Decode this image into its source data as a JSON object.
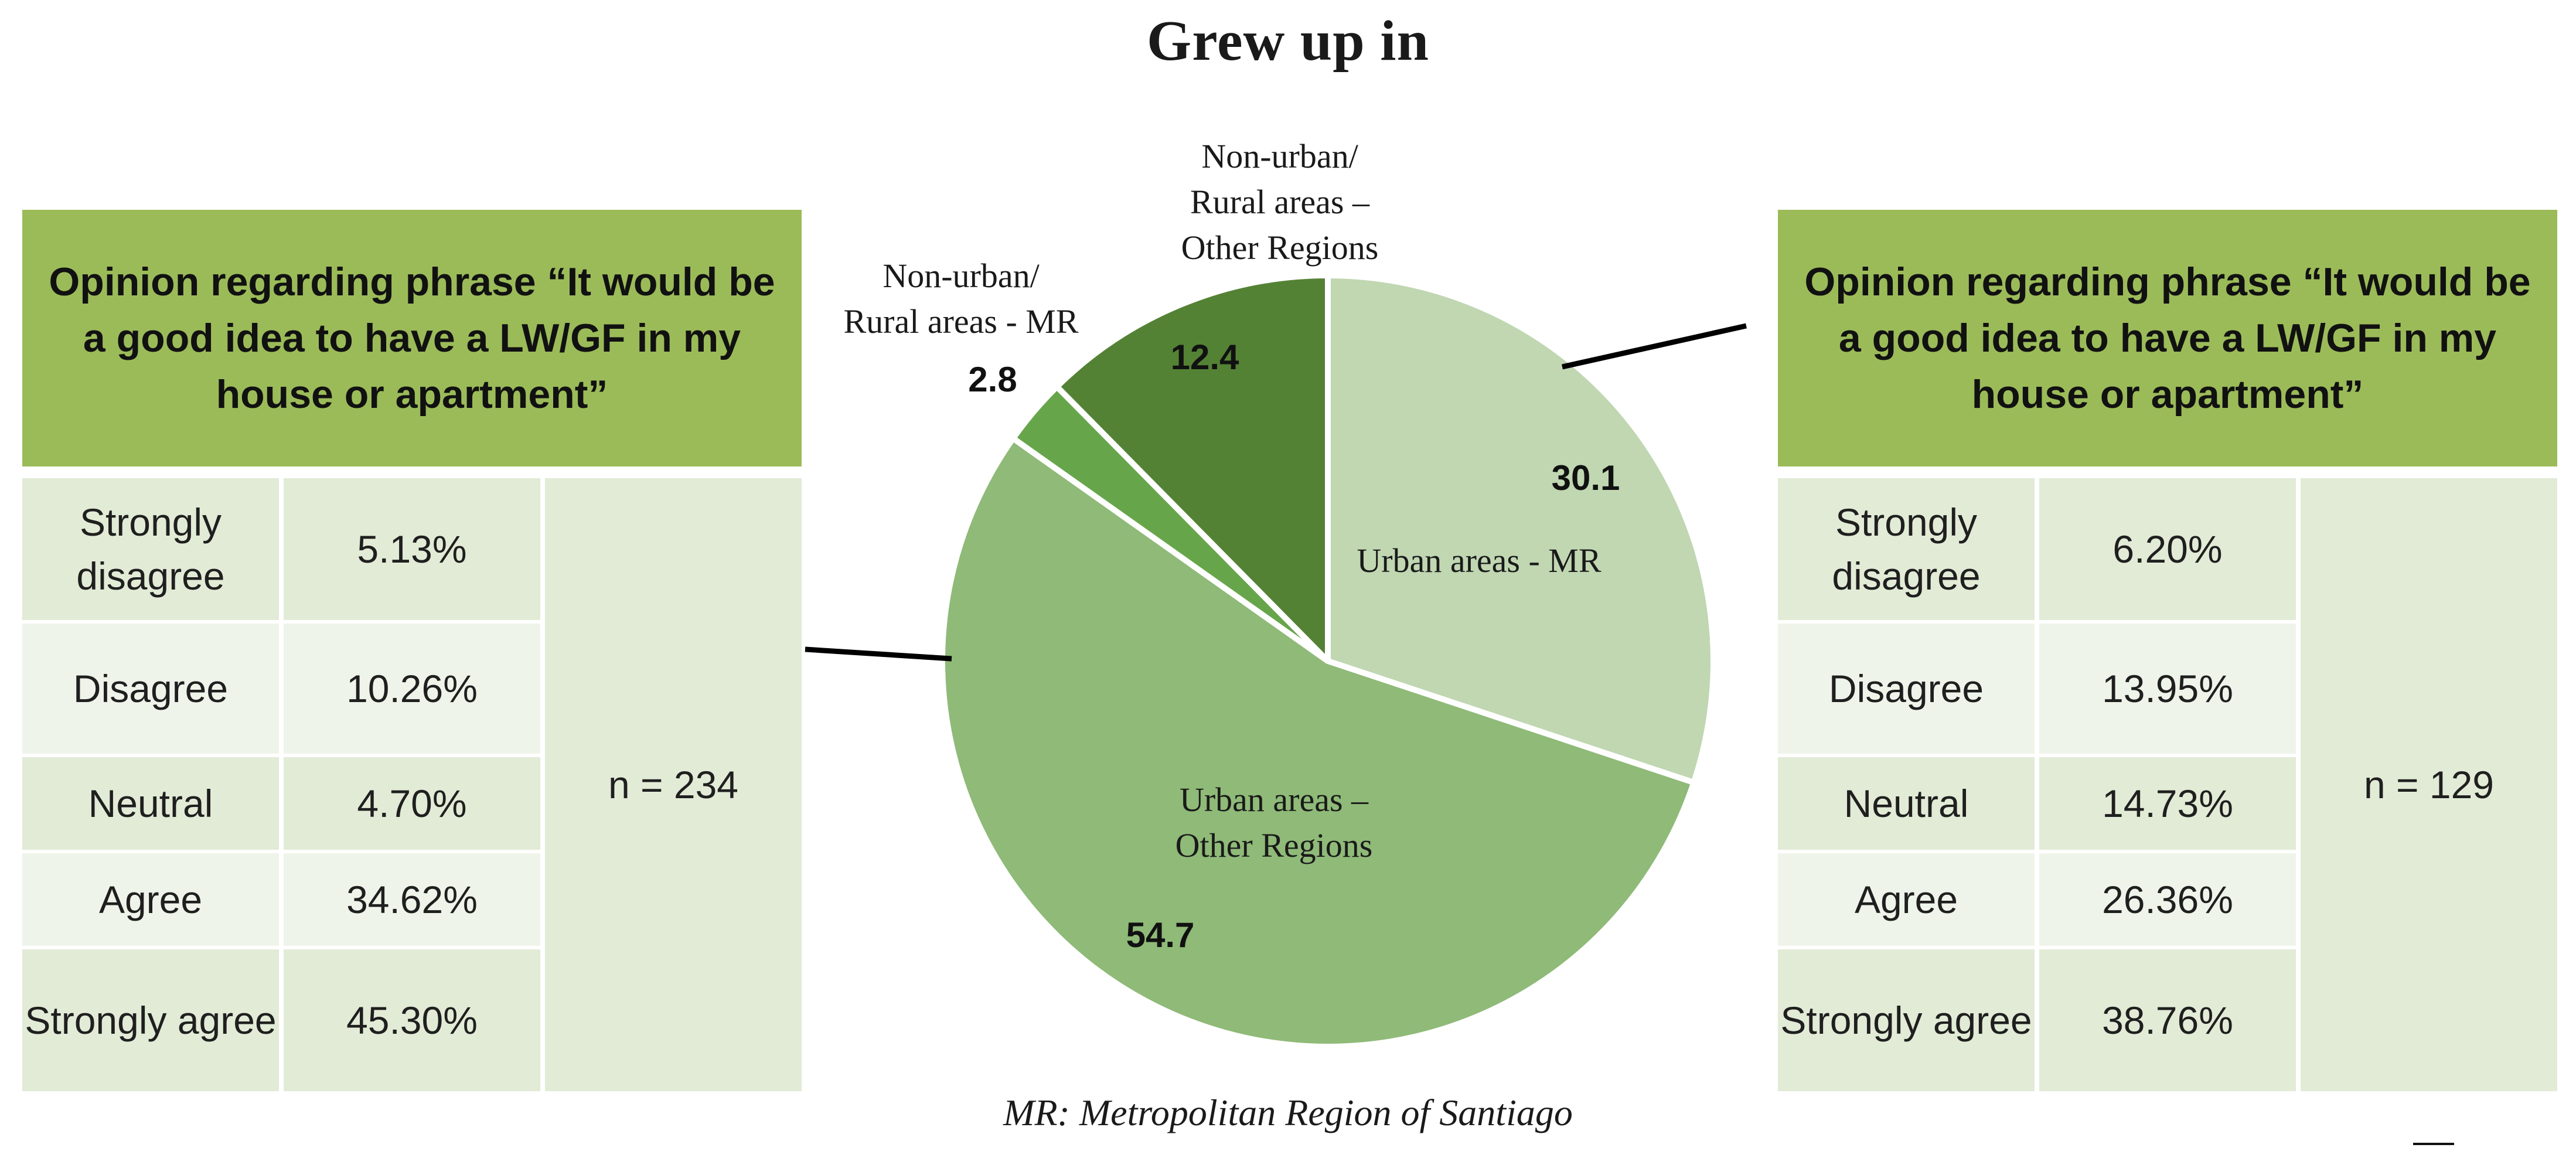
{
  "title": "Grew up in",
  "footnote": "MR: Metropolitan Region of Santiago",
  "colors": {
    "header_bg": "#9bbb59",
    "row_dark": "#e2ebd6",
    "row_light": "#eff4ea",
    "urban_mr": "#c0d7b2",
    "urban_other": "#8fba78",
    "rural_mr": "#67a54b",
    "rural_other": "#548235"
  },
  "left_panel": {
    "header": "Opinion regarding phrase “It would be a good idea to have a LW/GF in my house or apartment”",
    "rows": [
      {
        "label": "Strongly disagree",
        "value": "5.13%"
      },
      {
        "label": "Disagree",
        "value": "10.26%"
      },
      {
        "label": "Neutral",
        "value": "4.70%"
      },
      {
        "label": "Agree",
        "value": "34.62%"
      },
      {
        "label": "Strongly agree",
        "value": "45.30%"
      }
    ],
    "n": "n = 234"
  },
  "right_panel": {
    "header": "Opinion regarding phrase “It would be a good idea to have a LW/GF in my house or apartment”",
    "rows": [
      {
        "label": "Strongly disagree",
        "value": "6.20%"
      },
      {
        "label": "Disagree",
        "value": "13.95%"
      },
      {
        "label": "Neutral",
        "value": "14.73%"
      },
      {
        "label": "Agree",
        "value": "26.36%"
      },
      {
        "label": "Strongly agree",
        "value": "38.76%"
      }
    ],
    "n": "n = 129"
  },
  "chart_data": {
    "type": "pie",
    "title": "Grew up in",
    "start_angle": "12 o'clock",
    "direction": "clockwise",
    "slices": [
      {
        "label": "Urban areas - MR",
        "value": 30.1,
        "value_label": "30.1",
        "color": "#c0d7b2"
      },
      {
        "label": "Urban areas – Other Regions",
        "value": 54.7,
        "value_label": "54.7",
        "color": "#8fba78"
      },
      {
        "label": "Non-urban/ Rural areas - MR",
        "value": 2.8,
        "value_label": "2.8",
        "color": "#67a54b"
      },
      {
        "label": "Non-urban/ Rural areas – Other Regions",
        "value": 12.4,
        "value_label": "12.4",
        "color": "#548235"
      }
    ],
    "category_label_lines": {
      "urban_mr": [
        "Urban areas - MR"
      ],
      "urban_other": [
        "Urban areas –",
        "Other Regions"
      ],
      "rural_mr": [
        "Non-urban/",
        "Rural areas - MR"
      ],
      "rural_other": [
        "Non-urban/",
        "Rural areas –",
        "Other Regions"
      ]
    }
  }
}
